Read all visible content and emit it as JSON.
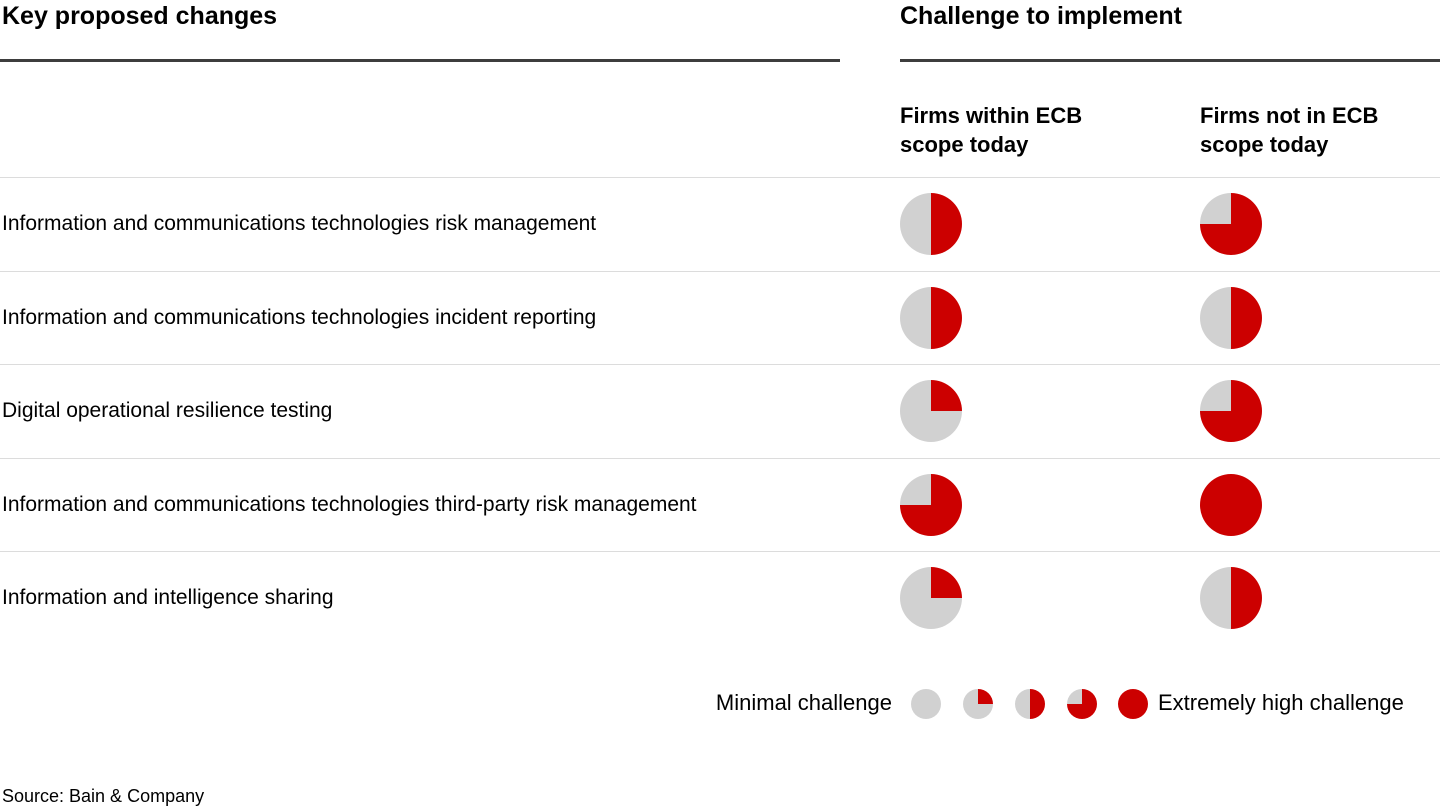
{
  "colors": {
    "fill_red": "#cc0000",
    "fill_gray": "#d1d1d1",
    "rule_dark": "#3d3d3d",
    "rule_light": "#dcdcdc"
  },
  "source": "Source: Bain & Company",
  "chart_data": {
    "type": "table",
    "title_left": "Key proposed changes",
    "title_right": "Challenge to implement",
    "columns": [
      "Firms within ECB scope today",
      "Firms not in ECB scope today"
    ],
    "value_unit": "percent of harvey ball filled red (challenge level, clockwise from 12 o'clock)",
    "rows": [
      {
        "label": "Information and communications technologies risk management",
        "values": [
          50,
          75
        ]
      },
      {
        "label": "Information and communications technologies incident reporting",
        "values": [
          50,
          50
        ]
      },
      {
        "label": "Digital operational resilience testing",
        "values": [
          25,
          75
        ]
      },
      {
        "label": "Information and communications technologies third-party risk management",
        "values": [
          75,
          100
        ]
      },
      {
        "label": "Information and intelligence sharing",
        "values": [
          25,
          50
        ]
      }
    ],
    "scale": {
      "min_label": "Minimal challenge",
      "max_label": "Extremely high challenge",
      "levels": [
        0,
        25,
        50,
        75,
        100
      ]
    }
  }
}
